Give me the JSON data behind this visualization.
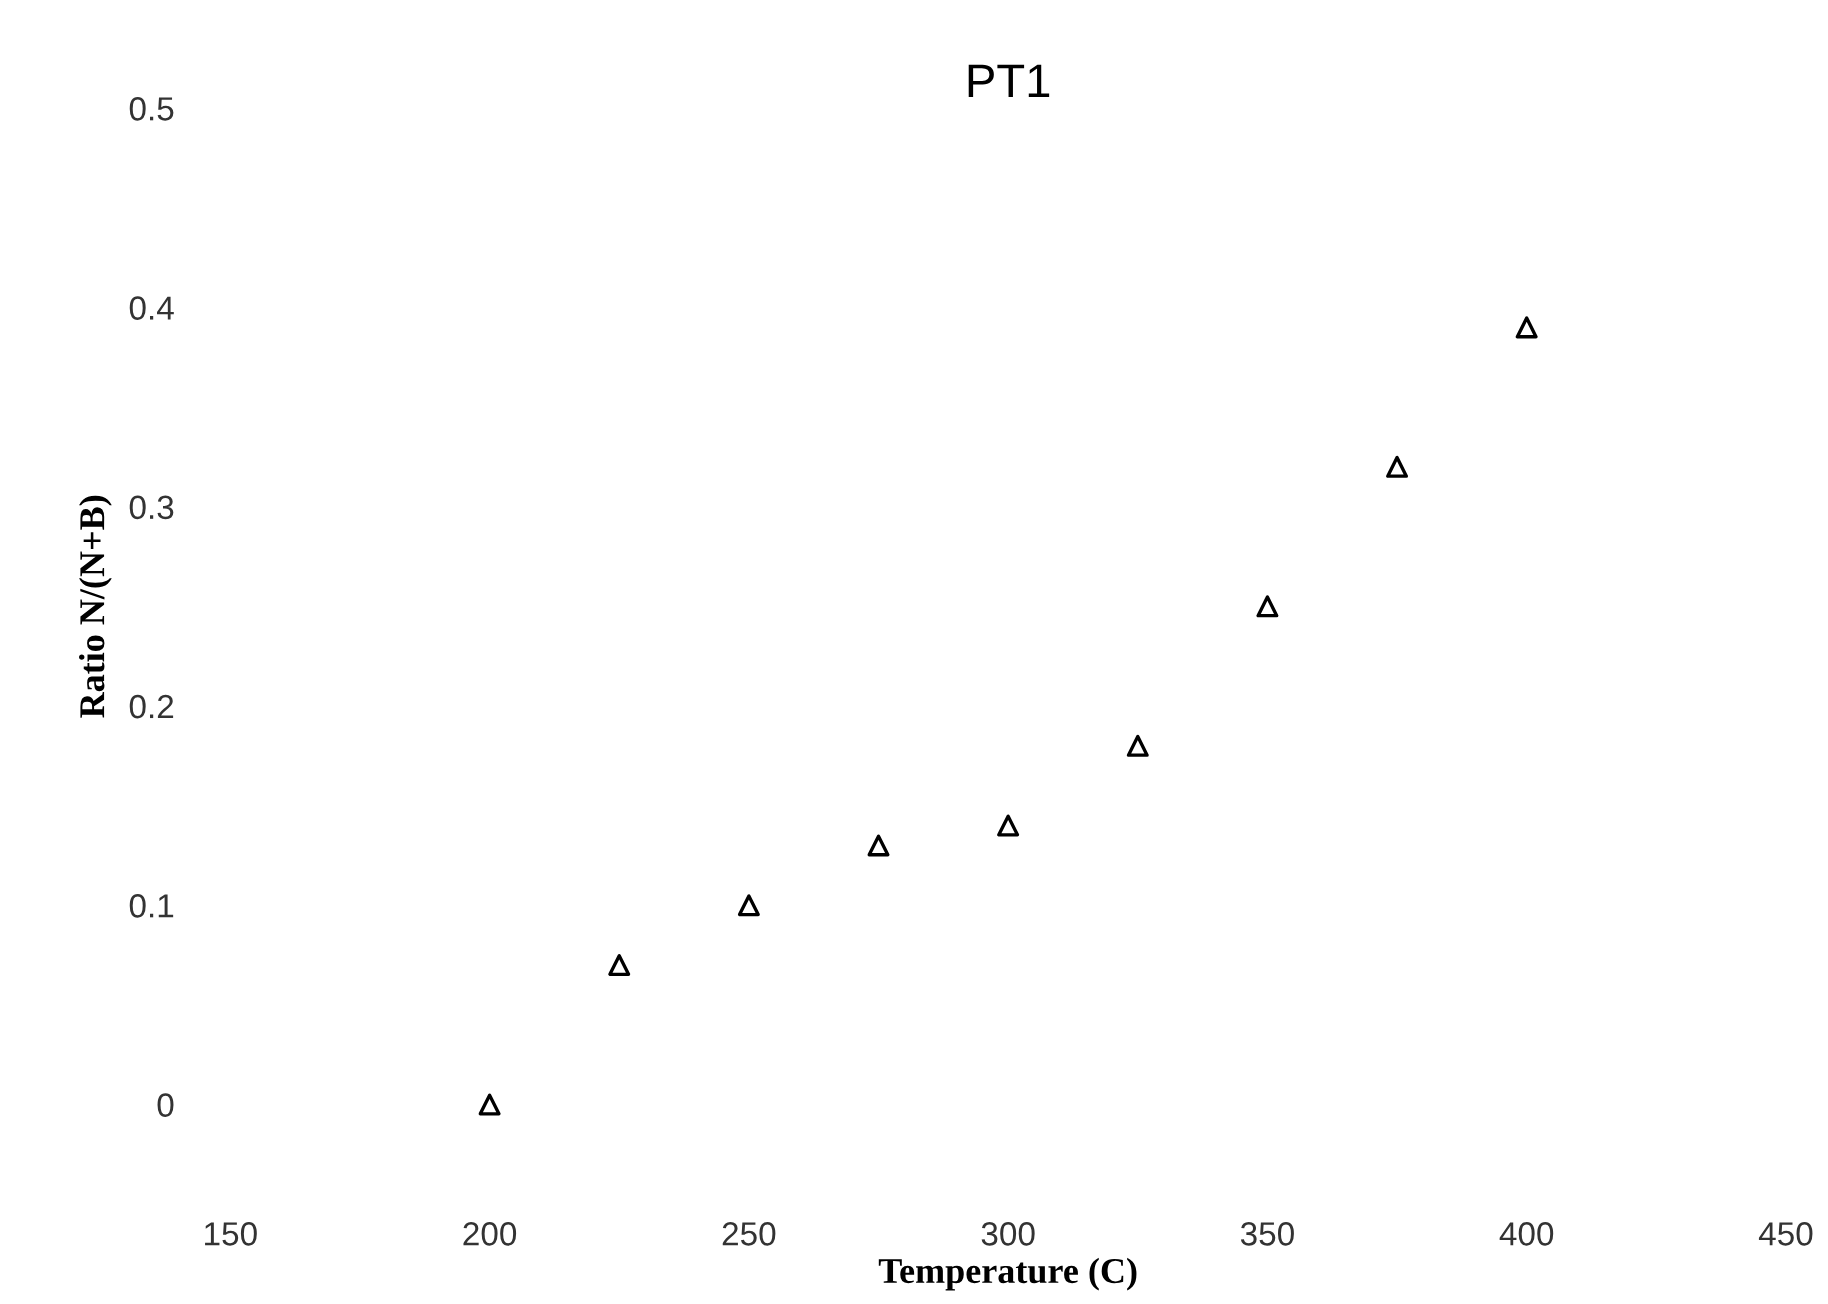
{
  "chart_data": {
    "type": "scatter",
    "title": "PT1",
    "xlabel": "Temperature (C)",
    "ylabel": "Ratio N/(N+B)",
    "x": [
      200,
      225,
      250,
      275,
      300,
      325,
      350,
      375,
      400
    ],
    "values": [
      0,
      0.07,
      0.1,
      0.13,
      0.14,
      0.18,
      0.25,
      0.32,
      0.39
    ],
    "color": "#000000",
    "marker": "triangle",
    "grid": false,
    "legend": false,
    "xlim": [
      150,
      450
    ],
    "xticks": [
      150,
      200,
      250,
      300,
      350,
      400,
      450
    ],
    "ylim": [
      0,
      0.5
    ],
    "yticks": [
      0,
      0.1,
      0.2,
      0.3,
      0.4,
      0.5
    ]
  }
}
